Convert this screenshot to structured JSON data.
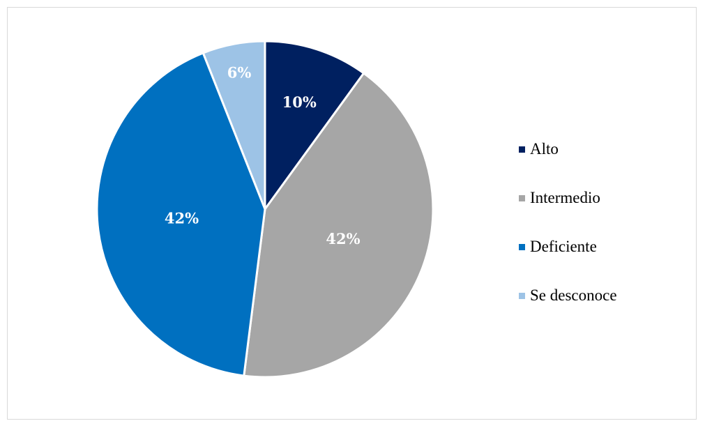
{
  "chart_data": {
    "type": "pie",
    "title": "",
    "legend_position": "right",
    "slices": [
      {
        "label": "Alto",
        "value": 10,
        "display": "10%",
        "color": "#002060"
      },
      {
        "label": "Intermedio",
        "value": 42,
        "display": "42%",
        "color": "#A6A6A6"
      },
      {
        "label": "Deficiente",
        "value": 42,
        "display": "42%",
        "color": "#0070C0"
      },
      {
        "label": "Se desconoce",
        "value": 6,
        "display": "6%",
        "color": "#9DC3E6"
      }
    ]
  }
}
